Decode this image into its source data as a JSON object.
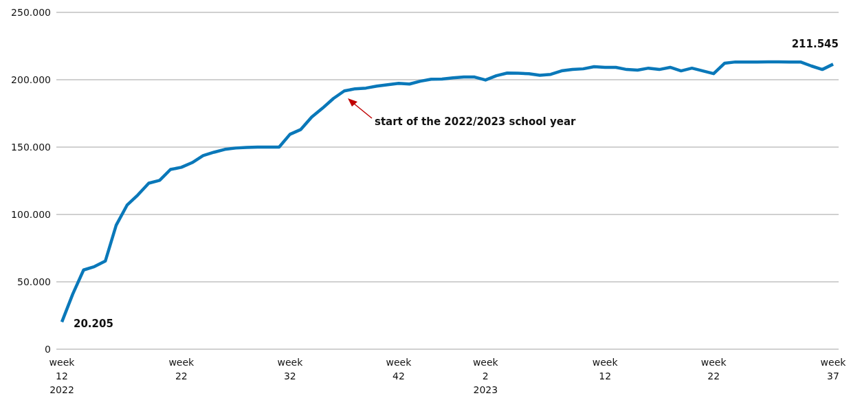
{
  "chart_data": {
    "type": "line",
    "categories": [
      "week\n12\n2022",
      null,
      null,
      null,
      null,
      null,
      null,
      null,
      null,
      null,
      null,
      "week\n22",
      null,
      null,
      null,
      null,
      null,
      null,
      null,
      null,
      null,
      "week\n32",
      null,
      null,
      null,
      null,
      null,
      null,
      null,
      null,
      null,
      "week\n42",
      null,
      null,
      null,
      null,
      null,
      null,
      null,
      "week\n2\n2023",
      null,
      null,
      null,
      null,
      null,
      null,
      null,
      null,
      null,
      null,
      "week\n12",
      null,
      null,
      null,
      null,
      null,
      null,
      null,
      null,
      null,
      "week\n22",
      null,
      null,
      null,
      null,
      null,
      null,
      null,
      null,
      null,
      null,
      "week\n37"
    ],
    "series": [
      {
        "color": "#0a78b9",
        "values": [
          20205,
          40900,
          58800,
          61300,
          65400,
          92000,
          106900,
          114500,
          123200,
          125300,
          133400,
          135000,
          138500,
          143700,
          146200,
          148300,
          149300,
          149800,
          150000,
          150000,
          150000,
          159500,
          163100,
          172300,
          178900,
          186100,
          191700,
          193300,
          193800,
          195300,
          196300,
          197300,
          196800,
          198900,
          200400,
          200500,
          201400,
          202000,
          202000,
          199800,
          203000,
          205000,
          204800,
          204500,
          203300,
          204000,
          206600,
          207600,
          208100,
          209700,
          209200,
          209200,
          207600,
          207100,
          208600,
          207600,
          209200,
          206600,
          208600,
          206600,
          204500,
          212200,
          213200,
          213200,
          213200,
          213300,
          213300,
          213200,
          213200,
          210200,
          207600,
          211545
        ],
        "value_labels": [
          "20.205",
          null,
          null,
          null,
          null,
          null,
          null,
          null,
          null,
          null,
          null,
          null,
          null,
          null,
          null,
          null,
          null,
          null,
          null,
          null,
          null,
          null,
          null,
          null,
          null,
          null,
          null,
          null,
          null,
          null,
          null,
          null,
          null,
          null,
          null,
          null,
          null,
          null,
          null,
          null,
          null,
          null,
          null,
          null,
          null,
          null,
          null,
          null,
          null,
          null,
          null,
          null,
          null,
          null,
          null,
          null,
          null,
          null,
          null,
          null,
          null,
          null,
          null,
          null,
          null,
          null,
          null,
          null,
          null,
          null,
          null,
          "211.545"
        ]
      }
    ],
    "ylim": [
      0,
      250000
    ],
    "yticks": [
      {
        "value": 0,
        "label": "0"
      },
      {
        "value": 50000,
        "label": "50.000"
      },
      {
        "value": 100000,
        "label": "100.000"
      },
      {
        "value": 150000,
        "label": "150.000"
      },
      {
        "value": 200000,
        "label": "200.000"
      },
      {
        "value": 250000,
        "label": "250.000"
      }
    ],
    "grid": "y",
    "legend": false,
    "marker": "none",
    "line_style": "solid",
    "annotations": [
      "start of the 2022/2023 school year"
    ]
  }
}
